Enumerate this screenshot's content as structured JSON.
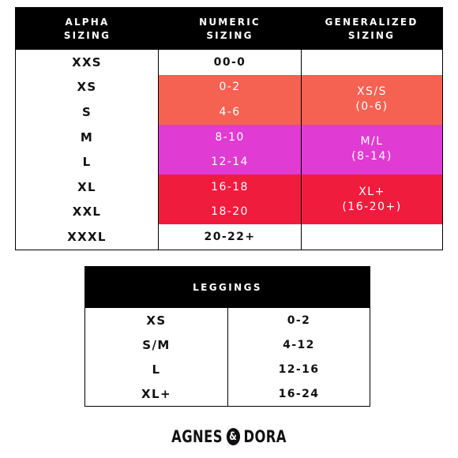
{
  "main_table": {
    "headers": {
      "alpha": [
        "ALPHA",
        "SIZING"
      ],
      "numeric": [
        "NUMERIC",
        "SIZING"
      ],
      "generalized": [
        "GENERALIZED",
        "SIZING"
      ]
    },
    "rows": [
      {
        "alpha": "XXS",
        "numeric": "00-0"
      },
      {
        "alpha": "XS",
        "numeric": "0-2"
      },
      {
        "alpha": "S",
        "numeric": "4-6"
      },
      {
        "alpha": "M",
        "numeric": "8-10"
      },
      {
        "alpha": "L",
        "numeric": "12-14"
      },
      {
        "alpha": "XL",
        "numeric": "16-18"
      },
      {
        "alpha": "XXL",
        "numeric": "18-20"
      },
      {
        "alpha": "XXXL",
        "numeric": "20-22+"
      }
    ],
    "generalized_groups": [
      {
        "line1": "XS/S",
        "line2": "(0-6)",
        "color": "#f56252"
      },
      {
        "line1": "M/L",
        "line2": "(8-14)",
        "color": "#e03bd3"
      },
      {
        "line1": "XL+",
        "line2": "(16-20+)",
        "color": "#f01c3e"
      }
    ],
    "colors": {
      "salmon": "#f56252",
      "magenta": "#e03bd3",
      "red": "#f01c3e",
      "header": "#000000"
    }
  },
  "leggings_table": {
    "header": "LEGGINGS",
    "rows": [
      {
        "alpha": "XS",
        "numeric": "0-2"
      },
      {
        "alpha": "S/M",
        "numeric": "4-12"
      },
      {
        "alpha": "L",
        "numeric": "12-16"
      },
      {
        "alpha": "XL+",
        "numeric": "16-24"
      }
    ]
  },
  "brand": {
    "left": "AGNES",
    "amp": "&",
    "right": "DORA"
  }
}
